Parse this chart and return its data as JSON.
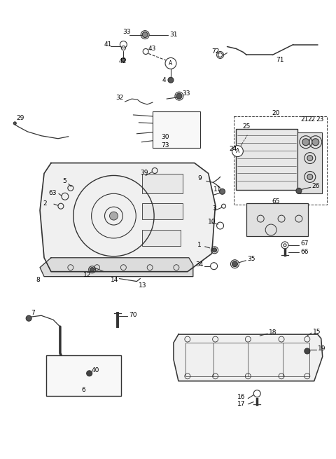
{
  "bg_color": "#ffffff",
  "line_color": "#333333",
  "fig_width": 4.8,
  "fig_height": 6.55,
  "dpi": 100
}
